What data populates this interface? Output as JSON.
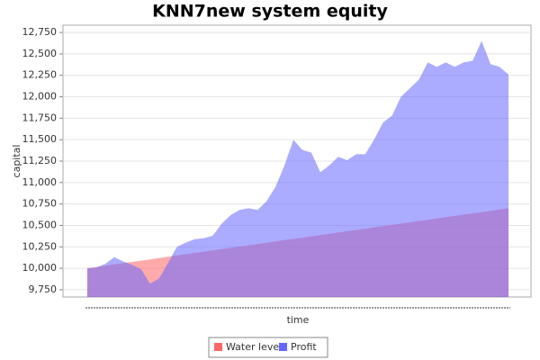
{
  "chart_data": {
    "type": "area",
    "title": "KNN7new system equity",
    "x_label": "time",
    "y_label": "capital",
    "categories": [
      null,
      null,
      null,
      null,
      null,
      null,
      null,
      null,
      null,
      null,
      null,
      null,
      null,
      null,
      null,
      null,
      null,
      null,
      null,
      null,
      null,
      null,
      null,
      null,
      null,
      null,
      null,
      null,
      null,
      null,
      null,
      null,
      null,
      null,
      null,
      null,
      null,
      null,
      null,
      null,
      null,
      null,
      null,
      null,
      null,
      null,
      null,
      null
    ],
    "series": [
      {
        "name": "Water level",
        "color": "#ff6666",
        "values": [
          10000,
          10015,
          10030,
          10045,
          10060,
          10074,
          10089,
          10104,
          10119,
          10134,
          10149,
          10164,
          10179,
          10194,
          10209,
          10223,
          10238,
          10253,
          10268,
          10283,
          10298,
          10313,
          10328,
          10343,
          10357,
          10372,
          10387,
          10402,
          10417,
          10432,
          10447,
          10462,
          10477,
          10491,
          10506,
          10521,
          10536,
          10551,
          10566,
          10581,
          10596,
          10611,
          10626,
          10640,
          10655,
          10670,
          10685,
          10700
        ]
      },
      {
        "name": "Profit",
        "color": "#6666ff",
        "values": [
          10000,
          10010,
          10050,
          10130,
          10080,
          10040,
          9990,
          9820,
          9880,
          10060,
          10250,
          10300,
          10340,
          10350,
          10380,
          10520,
          10620,
          10680,
          10700,
          10680,
          10780,
          10950,
          11200,
          11500,
          11380,
          11350,
          11120,
          11200,
          11300,
          11260,
          11330,
          11330,
          11500,
          11700,
          11780,
          12000,
          12100,
          12200,
          12400,
          12350,
          12400,
          12350,
          12400,
          12420,
          12650,
          12380,
          12350,
          12260
        ]
      }
    ],
    "ylim": [
      9665,
      12835
    ],
    "yticks": [
      {
        "value": 9750,
        "label": "9,750"
      },
      {
        "value": 10000,
        "label": "10,000"
      },
      {
        "value": 10250,
        "label": "10,250"
      },
      {
        "value": 10500,
        "label": "10,500"
      },
      {
        "value": 10750,
        "label": "10,750"
      },
      {
        "value": 11000,
        "label": "11,000"
      },
      {
        "value": 11250,
        "label": "11,250"
      },
      {
        "value": 11500,
        "label": "11,500"
      },
      {
        "value": 11750,
        "label": "11,750"
      },
      {
        "value": 12000,
        "label": "12,000"
      },
      {
        "value": 12250,
        "label": "12,250"
      },
      {
        "value": 12500,
        "label": "12,500"
      },
      {
        "value": 12750,
        "label": "12,750"
      }
    ],
    "grid": true,
    "legend": "bottom"
  }
}
